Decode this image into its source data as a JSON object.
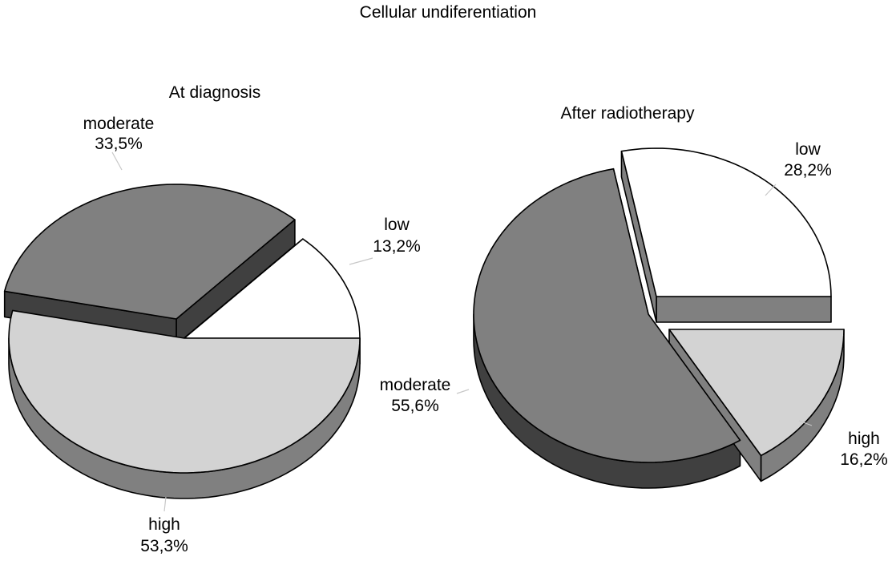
{
  "title": "Cellular undiferentiation",
  "chart_data": [
    {
      "type": "pie",
      "subtitle": "At diagnosis",
      "title": "Cellular undiferentiation",
      "slices": [
        {
          "label": "low",
          "value": 13.2,
          "display": "13,2%",
          "color": "#ffffff",
          "side_color": "#808080"
        },
        {
          "label": "high",
          "value": 53.3,
          "display": "53,3%",
          "color": "#d3d3d3",
          "side_color": "#808080"
        },
        {
          "label": "moderate",
          "value": 33.5,
          "display": "33,5%",
          "color": "#808080",
          "side_color": "#404040"
        }
      ],
      "style": "3d-exploded"
    },
    {
      "type": "pie",
      "subtitle": "After radiotherapy",
      "title": "Cellular undiferentiation",
      "slices": [
        {
          "label": "low",
          "value": 28.2,
          "display": "28,2%",
          "color": "#ffffff",
          "side_color": "#808080"
        },
        {
          "label": "high",
          "value": 16.2,
          "display": "16,2%",
          "color": "#d3d3d3",
          "side_color": "#808080"
        },
        {
          "label": "moderate",
          "value": 55.6,
          "display": "55,6%",
          "color": "#808080",
          "side_color": "#404040"
        }
      ],
      "style": "3d-exploded"
    }
  ],
  "labels": {
    "left": {
      "subtitle": "At diagnosis",
      "moderate_name": "moderate",
      "moderate_pct": "33,5%",
      "low_name": "low",
      "low_pct": "13,2%",
      "high_name": "high",
      "high_pct": "53,3%"
    },
    "right": {
      "subtitle": "After radiotherapy",
      "low_name": "low",
      "low_pct": "28,2%",
      "moderate_name": "moderate",
      "moderate_pct": "55,6%",
      "high_name": "high",
      "high_pct": "16,2%"
    }
  }
}
